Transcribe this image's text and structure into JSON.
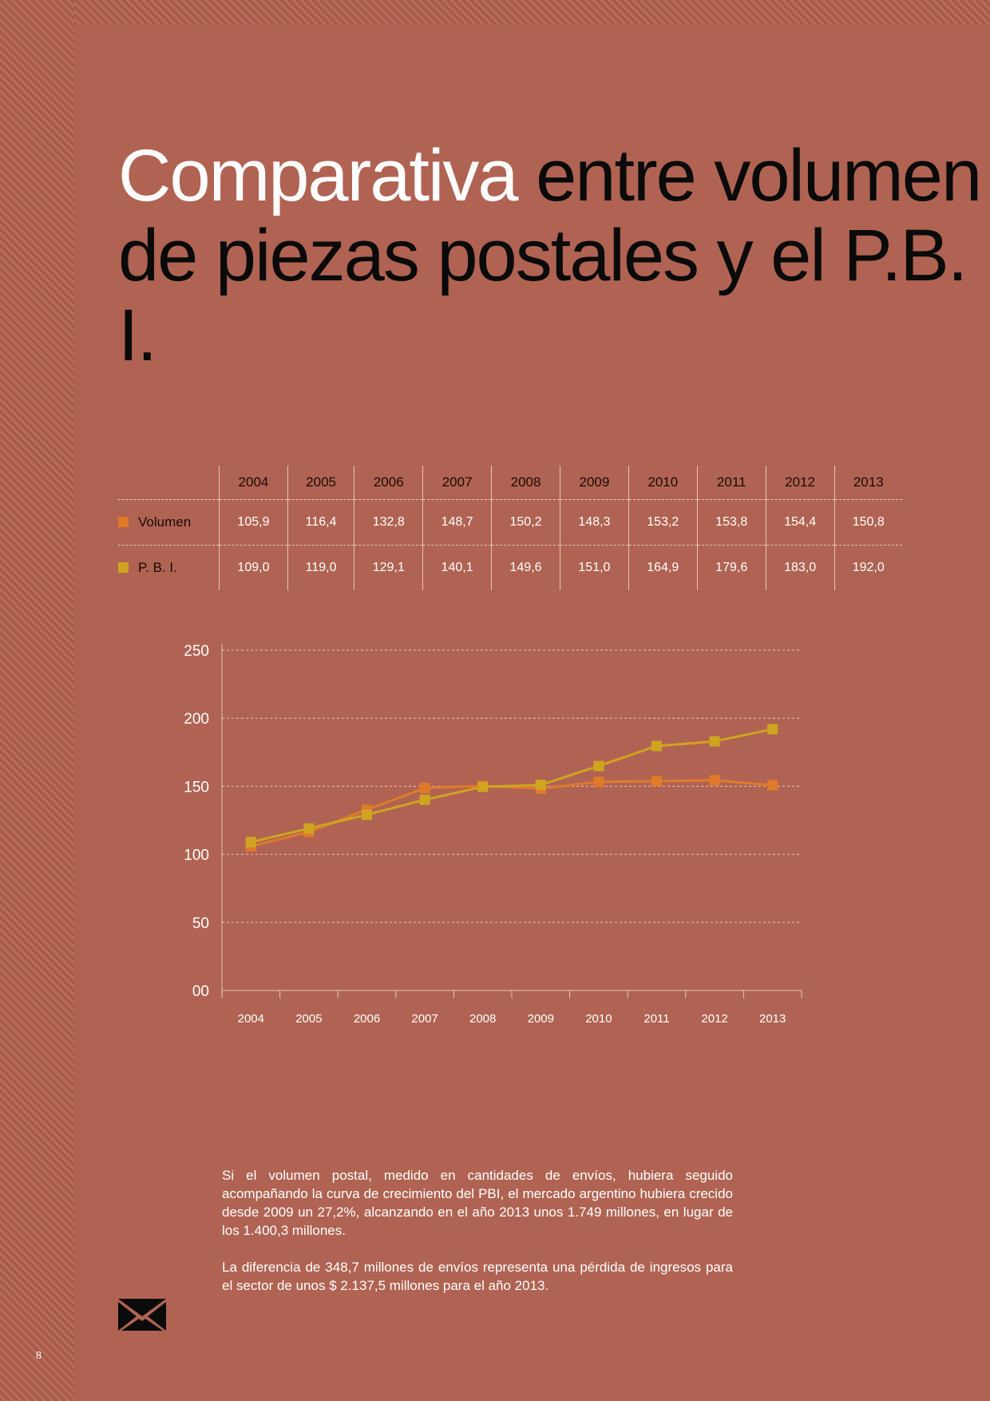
{
  "title": {
    "highlight": "Comparativa",
    "rest": " entre volumen de piezas postales y el P.B. I."
  },
  "table": {
    "years": [
      "2004",
      "2005",
      "2006",
      "2007",
      "2008",
      "2009",
      "2010",
      "2011",
      "2012",
      "2013"
    ],
    "rows": [
      {
        "label": "Volumen",
        "color": "#e07a2a",
        "values": [
          "105,9",
          "116,4",
          "132,8",
          "148,7",
          "150,2",
          "148,3",
          "153,2",
          "153,8",
          "154,4",
          "150,8"
        ]
      },
      {
        "label": "P. B. I.",
        "color": "#cfa420",
        "values": [
          "109,0",
          "119,0",
          "129,1",
          "140,1",
          "149,6",
          "151,0",
          "164,9",
          "179,6",
          "183,0",
          "192,0"
        ]
      }
    ]
  },
  "chart_data": {
    "type": "line",
    "x": [
      "2004",
      "2005",
      "2006",
      "2007",
      "2008",
      "2009",
      "2010",
      "2011",
      "2012",
      "2013"
    ],
    "series": [
      {
        "name": "Volumen",
        "color": "#e07a2a",
        "values": [
          105.9,
          116.4,
          132.8,
          148.7,
          150.2,
          148.3,
          153.2,
          153.8,
          154.4,
          150.8
        ]
      },
      {
        "name": "P. B. I.",
        "color": "#cfa420",
        "values": [
          109.0,
          119.0,
          129.1,
          140.1,
          149.6,
          151.0,
          164.9,
          179.6,
          183.0,
          192.0
        ]
      }
    ],
    "ylim": [
      0,
      250
    ],
    "ytick_labels": [
      "00",
      "50",
      "100",
      "150",
      "200",
      "250"
    ],
    "grid": true,
    "xlabel": "",
    "ylabel": ""
  },
  "body": {
    "p1": "Si el volumen postal, medido en cantidades de envíos, hubiera seguido acompañando la curva de crecimiento del PBI, el mercado argentino hubiera crecido desde 2009 un 27,2%, alcanzando en el año 2013 unos 1.749 millones, en lugar de los 1.400,3 millones.",
    "p2": "La diferencia de 348,7 millones de envíos representa una pérdida de ingresos para el sector de unos $ 2.137,5 millones para el año 2013."
  },
  "icons": {
    "envelope": "envelope-icon"
  },
  "page_number": "8"
}
